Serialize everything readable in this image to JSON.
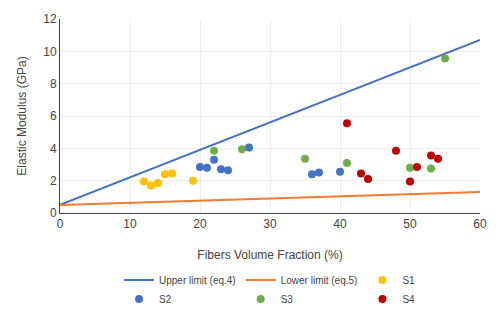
{
  "chart_data": {
    "type": "scatter",
    "xlabel": "Fibers Volume Fraction (%)",
    "ylabel": "Elastic Modulus (GPa)",
    "xlim": [
      0,
      60
    ],
    "ylim": [
      0,
      12
    ],
    "xticks": [
      0,
      10,
      20,
      30,
      40,
      50,
      60
    ],
    "yticks": [
      0,
      2,
      4,
      6,
      8,
      10,
      12
    ],
    "grid": true,
    "legend": "bottom",
    "series": [
      {
        "name": "Upper limit (eq.4)",
        "type": "line",
        "color": "#4472C4",
        "x": [
          0,
          60
        ],
        "values": [
          0.5,
          10.7
        ]
      },
      {
        "name": "Lower limit (eq.5)",
        "type": "line",
        "color": "#ED7D31",
        "x": [
          0,
          60
        ],
        "values": [
          0.5,
          1.3
        ]
      },
      {
        "name": "S1",
        "type": "scatter",
        "color": "#FFC000",
        "x": [
          12,
          13,
          14,
          15,
          16,
          19
        ],
        "values": [
          1.95,
          1.7,
          1.85,
          2.4,
          2.45,
          2.0
        ]
      },
      {
        "name": "S2",
        "type": "scatter",
        "color": "#4472C4",
        "x": [
          20,
          21,
          22,
          23,
          24,
          27,
          36,
          37,
          40
        ],
        "values": [
          2.85,
          2.8,
          3.3,
          2.7,
          2.65,
          4.05,
          2.4,
          2.5,
          2.55
        ]
      },
      {
        "name": "S3",
        "type": "scatter",
        "color": "#70AD47",
        "x": [
          22,
          26,
          35,
          41,
          50,
          53,
          55
        ],
        "values": [
          3.85,
          3.95,
          3.35,
          3.1,
          2.8,
          2.75,
          9.55
        ]
      },
      {
        "name": "S4",
        "type": "scatter",
        "color": "#C00000",
        "x": [
          41,
          43,
          44,
          48,
          50,
          51,
          53,
          54
        ],
        "values": [
          5.55,
          2.45,
          2.1,
          3.85,
          1.95,
          2.85,
          3.55,
          3.35
        ]
      }
    ]
  }
}
